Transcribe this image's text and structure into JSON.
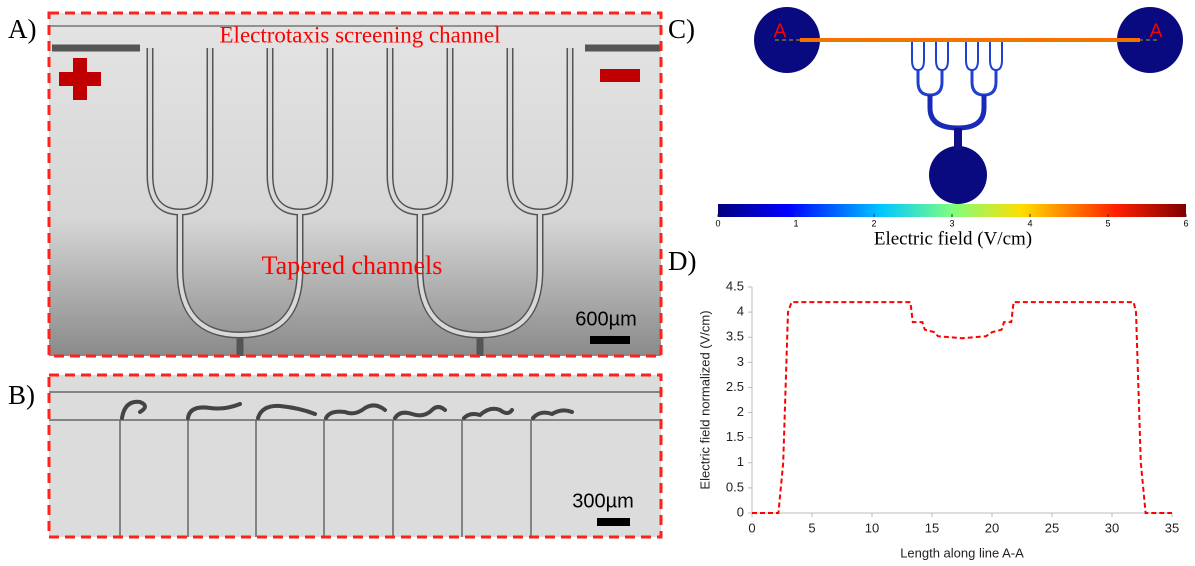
{
  "panels": {
    "a": {
      "label": "A)",
      "title": "Electrotaxis screening channel",
      "annotation": "Tapered channels",
      "scale_bar": "600µm"
    },
    "b": {
      "label": "B)",
      "scale_bar": "300µm"
    },
    "c": {
      "label": "C)",
      "point_labels": [
        "A",
        "A"
      ],
      "colorbar": {
        "label": "Electric field (V/cm)",
        "lim": [
          0,
          6
        ],
        "ticks": [
          0,
          1,
          2,
          3,
          4,
          5,
          6
        ]
      }
    },
    "d": {
      "label": "D)"
    }
  },
  "chart_data": {
    "type": "line",
    "xlabel": "Length along line A-A",
    "ylabel": "Electric field normalized (V/cm)",
    "x": [
      0,
      2.2,
      2.6,
      3.0,
      3.3,
      13.2,
      13.4,
      14.2,
      14.4,
      15.2,
      15.5,
      16.5,
      17.5,
      18.5,
      19.5,
      20.0,
      20.8,
      21.0,
      21.6,
      21.8,
      31.8,
      32.0,
      32.4,
      32.8,
      35
    ],
    "series": [
      {
        "color": "#ff0000",
        "line_style": "dashed",
        "values": [
          0,
          0,
          1,
          4.0,
          4.2,
          4.2,
          3.8,
          3.8,
          3.65,
          3.6,
          3.52,
          3.5,
          3.48,
          3.5,
          3.52,
          3.6,
          3.65,
          3.8,
          3.8,
          4.2,
          4.2,
          4.0,
          1,
          0,
          0
        ]
      }
    ],
    "xlim": [
      0,
      35
    ],
    "ylim": [
      0,
      4.5
    ],
    "xticks": [
      0,
      5,
      10,
      15,
      20,
      25,
      30,
      35
    ],
    "yticks": [
      0,
      0.5,
      1,
      1.5,
      2,
      2.5,
      3,
      3.5,
      4,
      4.5
    ],
    "grid": false
  }
}
